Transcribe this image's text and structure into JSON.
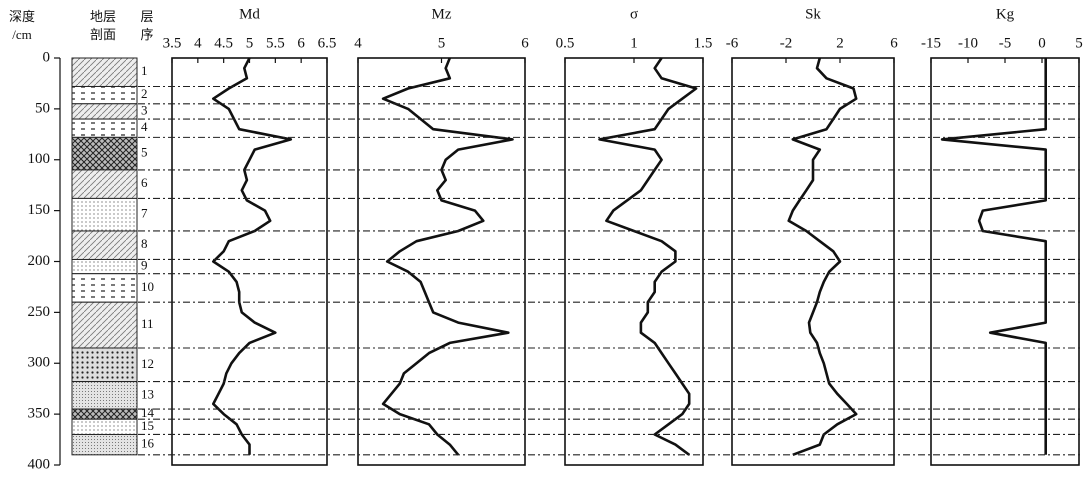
{
  "chart_data": {
    "type": "well-log",
    "depth_label": [
      "深度",
      "/cm"
    ],
    "ylim": [
      0,
      400
    ],
    "yticks": [
      0,
      50,
      100,
      150,
      200,
      250,
      300,
      350,
      400
    ],
    "depth": [
      0,
      10,
      20,
      30,
      40,
      50,
      60,
      70,
      80,
      90,
      100,
      110,
      120,
      130,
      140,
      150,
      160,
      170,
      180,
      190,
      200,
      210,
      220,
      230,
      240,
      250,
      260,
      270,
      280,
      290,
      300,
      310,
      320,
      330,
      340,
      350,
      360,
      370,
      380,
      390
    ],
    "strata": {
      "section_label": [
        "地层",
        "剖面"
      ],
      "order_label": [
        "层",
        "序"
      ],
      "boundaries": [
        0,
        28,
        45,
        60,
        78,
        110,
        138,
        170,
        198,
        212,
        240,
        285,
        318,
        345,
        355,
        370,
        390
      ],
      "labels": [
        "1",
        "2",
        "3",
        "4",
        "5",
        "6",
        "7",
        "8",
        "9",
        "10",
        "11",
        "12",
        "13",
        "14",
        "15",
        "16"
      ]
    },
    "panels": [
      {
        "title": "Md",
        "xlim": [
          3.5,
          6.5
        ],
        "xticks": [
          3.5,
          4,
          4.5,
          5,
          5.5,
          6,
          6.5
        ],
        "values": [
          5.0,
          4.9,
          4.95,
          4.6,
          4.3,
          4.6,
          4.7,
          4.8,
          5.8,
          5.1,
          5.0,
          4.9,
          4.95,
          4.85,
          4.95,
          5.3,
          5.4,
          5.1,
          4.6,
          4.5,
          4.3,
          4.6,
          4.75,
          4.8,
          4.8,
          4.85,
          5.1,
          5.5,
          5.0,
          4.8,
          4.65,
          4.55,
          4.5,
          4.4,
          4.3,
          4.5,
          4.75,
          4.85,
          5.0,
          5.0
        ]
      },
      {
        "title": "Mz",
        "xlim": [
          4,
          6
        ],
        "xticks": [
          4,
          5,
          6
        ],
        "values": [
          5.1,
          5.05,
          5.1,
          4.6,
          4.3,
          4.6,
          4.75,
          4.9,
          5.85,
          5.2,
          5.05,
          5.0,
          5.05,
          4.95,
          5.0,
          5.4,
          5.5,
          5.2,
          4.7,
          4.5,
          4.35,
          4.6,
          4.75,
          4.8,
          4.85,
          4.9,
          5.2,
          5.8,
          5.1,
          4.85,
          4.7,
          4.55,
          4.5,
          4.4,
          4.3,
          4.5,
          4.85,
          4.95,
          5.1,
          5.2
        ]
      },
      {
        "title": "σ",
        "xlim": [
          0.5,
          1.5
        ],
        "xticks": [
          0.5,
          1,
          1.5
        ],
        "values": [
          1.2,
          1.15,
          1.2,
          1.45,
          1.35,
          1.25,
          1.2,
          1.15,
          0.75,
          1.15,
          1.2,
          1.15,
          1.1,
          1.05,
          0.95,
          0.85,
          0.8,
          1.0,
          1.2,
          1.3,
          1.3,
          1.2,
          1.15,
          1.15,
          1.1,
          1.1,
          1.05,
          1.05,
          1.15,
          1.2,
          1.25,
          1.3,
          1.35,
          1.4,
          1.4,
          1.35,
          1.25,
          1.15,
          1.3,
          1.4
        ]
      },
      {
        "title": "Sk",
        "xlim": [
          -6,
          6
        ],
        "xticks": [
          -6,
          -2,
          2,
          6
        ],
        "values": [
          0.5,
          0.3,
          1.0,
          3.0,
          3.2,
          2.0,
          1.5,
          1.0,
          -1.5,
          0.5,
          0,
          0,
          0,
          -0.5,
          -1,
          -1.5,
          -1.8,
          -0.5,
          0.5,
          1.5,
          2.0,
          1.2,
          0.8,
          0.5,
          0.3,
          0,
          -0.3,
          -0.2,
          0.3,
          0.5,
          0.8,
          1.0,
          1.2,
          1.8,
          2.5,
          3.2,
          1.8,
          0.8,
          0.5,
          -1.5
        ]
      },
      {
        "title": "Kg",
        "xlim": [
          -15,
          5
        ],
        "xticks": [
          -15,
          -10,
          -5,
          0,
          5
        ],
        "values": [
          0.5,
          0.5,
          0.5,
          0.5,
          0.5,
          0.5,
          0.5,
          0.5,
          -13.5,
          0.5,
          0.5,
          0.5,
          0.5,
          0.5,
          0.5,
          -8,
          -8.5,
          -8,
          0.5,
          0.5,
          0.5,
          0.5,
          0.5,
          0.5,
          0.5,
          0.5,
          0.5,
          -7,
          0.5,
          0.5,
          0.5,
          0.5,
          0.5,
          0.5,
          0.5,
          0.5,
          0.5,
          0.5,
          0.5,
          0.5
        ]
      }
    ]
  }
}
